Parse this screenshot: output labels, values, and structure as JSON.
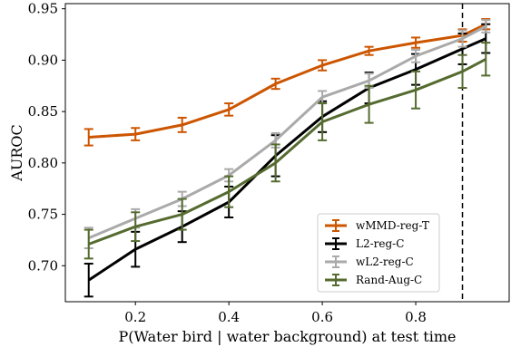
{
  "chart_data": {
    "type": "line",
    "title": "",
    "xlabel": "P(Water bird | water background) at test time",
    "ylabel": "AUROC",
    "xlim": [
      0.05,
      1.0
    ],
    "ylim": [
      0.665,
      0.955
    ],
    "xticks": [
      0.2,
      0.4,
      0.6,
      0.8
    ],
    "xtick_labels": [
      "0.2",
      "0.4",
      "0.6",
      "0.8"
    ],
    "yticks": [
      0.7,
      0.75,
      0.8,
      0.85,
      0.9,
      0.95
    ],
    "ytick_labels": [
      "0.70",
      "0.75",
      "0.80",
      "0.85",
      "0.90",
      "0.95"
    ],
    "grid": false,
    "legend_position": "lower-right",
    "vline": {
      "x": 0.9,
      "style": "dashed",
      "color": "#000000"
    },
    "x": [
      0.1,
      0.2,
      0.3,
      0.4,
      0.5,
      0.6,
      0.7,
      0.8,
      0.9,
      0.95
    ],
    "series": [
      {
        "name": "wMMD-reg-T",
        "color": "#cc5500",
        "values": [
          0.825,
          0.828,
          0.837,
          0.852,
          0.877,
          0.895,
          0.909,
          0.917,
          0.924,
          0.935
        ],
        "errors": [
          0.008,
          0.006,
          0.007,
          0.006,
          0.005,
          0.005,
          0.004,
          0.005,
          0.006,
          0.005
        ]
      },
      {
        "name": "L2-reg-C",
        "color": "#000000",
        "values": [
          0.686,
          0.716,
          0.738,
          0.762,
          0.807,
          0.845,
          0.873,
          0.891,
          0.911,
          0.921
        ],
        "errors": [
          0.016,
          0.017,
          0.015,
          0.015,
          0.02,
          0.015,
          0.015,
          0.015,
          0.015,
          0.014
        ]
      },
      {
        "name": "wL2-reg-C",
        "color": "#aaaaaa",
        "values": [
          0.727,
          0.746,
          0.765,
          0.788,
          0.822,
          0.864,
          0.88,
          0.904,
          0.921,
          0.933
        ],
        "errors": [
          0.01,
          0.009,
          0.007,
          0.006,
          0.007,
          0.006,
          0.007,
          0.006,
          0.008,
          0.006
        ]
      },
      {
        "name": "Rand-Aug-C",
        "color": "#556b2f",
        "values": [
          0.721,
          0.738,
          0.75,
          0.772,
          0.8,
          0.84,
          0.857,
          0.871,
          0.889,
          0.901
        ],
        "errors": [
          0.014,
          0.014,
          0.015,
          0.015,
          0.018,
          0.018,
          0.018,
          0.018,
          0.016,
          0.016
        ]
      }
    ]
  }
}
